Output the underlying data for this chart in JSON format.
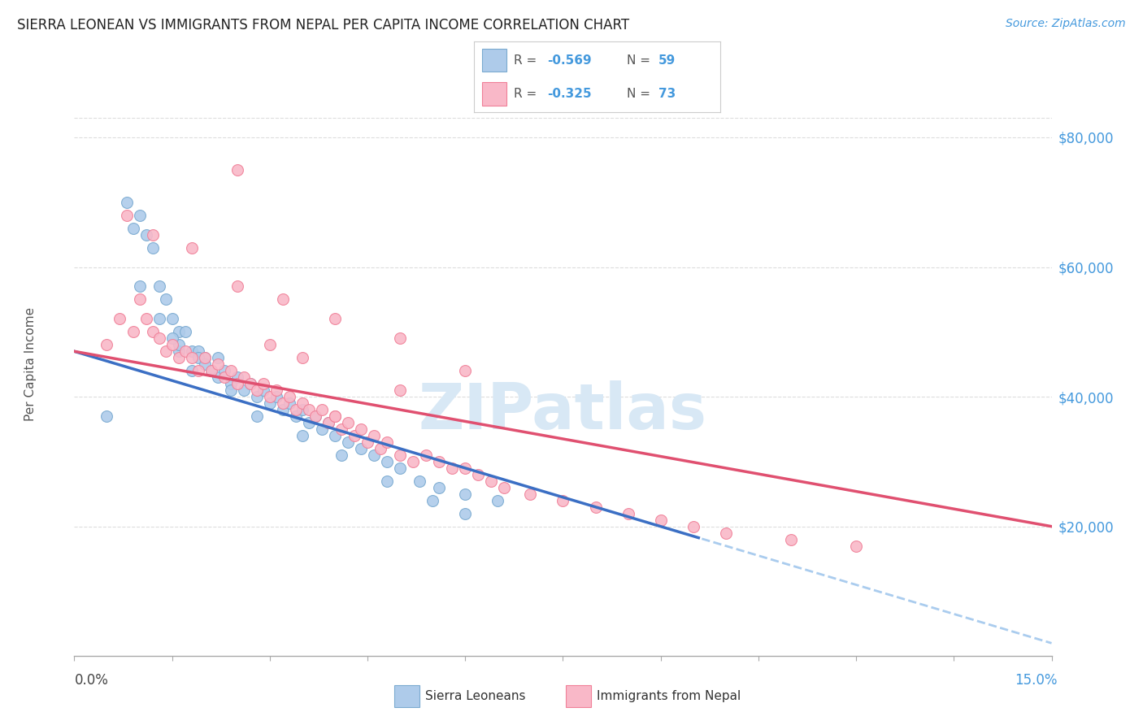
{
  "title": "SIERRA LEONEAN VS IMMIGRANTS FROM NEPAL PER CAPITA INCOME CORRELATION CHART",
  "source": "Source: ZipAtlas.com",
  "ylabel": "Per Capita Income",
  "legend_blue_r": "-0.569",
  "legend_blue_n": "59",
  "legend_pink_r": "-0.325",
  "legend_pink_n": "73",
  "legend_label_blue": "Sierra Leoneans",
  "legend_label_pink": "Immigrants from Nepal",
  "blue_scatter_color": "#AECBEA",
  "blue_edge_color": "#7AAAD0",
  "pink_scatter_color": "#F9B8C8",
  "pink_edge_color": "#F08098",
  "trend_blue_color": "#3B6FC4",
  "trend_pink_color": "#E05070",
  "trend_dash_color": "#AACCEE",
  "grid_color": "#DDDDDD",
  "background_color": "#FFFFFF",
  "watermark_color": "#D8E8F5",
  "xlim": [
    0.0,
    0.15
  ],
  "ylim": [
    0,
    90000
  ],
  "y_ticks": [
    20000,
    40000,
    60000,
    80000
  ],
  "y_tick_labels": [
    "$20,000",
    "$40,000",
    "$60,000",
    "$80,000"
  ],
  "blue_x": [
    0.005,
    0.01,
    0.011,
    0.012,
    0.013,
    0.014,
    0.015,
    0.016,
    0.016,
    0.017,
    0.018,
    0.018,
    0.019,
    0.02,
    0.021,
    0.022,
    0.022,
    0.023,
    0.024,
    0.025,
    0.026,
    0.027,
    0.028,
    0.029,
    0.03,
    0.031,
    0.032,
    0.033,
    0.034,
    0.035,
    0.036,
    0.037,
    0.038,
    0.039,
    0.04,
    0.042,
    0.044,
    0.046,
    0.048,
    0.05,
    0.053,
    0.056,
    0.06,
    0.065,
    0.008,
    0.009,
    0.013,
    0.016,
    0.019,
    0.024,
    0.028,
    0.035,
    0.041,
    0.048,
    0.055,
    0.06,
    0.01,
    0.015,
    0.02
  ],
  "blue_y": [
    37000,
    68000,
    65000,
    63000,
    57000,
    55000,
    52000,
    50000,
    47000,
    50000,
    47000,
    44000,
    47000,
    46000,
    44000,
    46000,
    43000,
    44000,
    42000,
    43000,
    41000,
    42000,
    40000,
    41000,
    39000,
    40000,
    38000,
    39000,
    37000,
    38000,
    36000,
    37000,
    35000,
    36000,
    34000,
    33000,
    32000,
    31000,
    30000,
    29000,
    27000,
    26000,
    25000,
    24000,
    70000,
    66000,
    52000,
    48000,
    46000,
    41000,
    37000,
    34000,
    31000,
    27000,
    24000,
    22000,
    57000,
    49000,
    45000
  ],
  "pink_x": [
    0.005,
    0.007,
    0.009,
    0.01,
    0.011,
    0.012,
    0.013,
    0.014,
    0.015,
    0.016,
    0.017,
    0.018,
    0.019,
    0.02,
    0.021,
    0.022,
    0.023,
    0.024,
    0.025,
    0.026,
    0.027,
    0.028,
    0.029,
    0.03,
    0.031,
    0.032,
    0.033,
    0.034,
    0.035,
    0.036,
    0.037,
    0.038,
    0.039,
    0.04,
    0.041,
    0.042,
    0.043,
    0.044,
    0.045,
    0.046,
    0.047,
    0.048,
    0.05,
    0.052,
    0.054,
    0.056,
    0.058,
    0.06,
    0.062,
    0.064,
    0.066,
    0.07,
    0.075,
    0.08,
    0.085,
    0.09,
    0.095,
    0.1,
    0.11,
    0.12,
    0.008,
    0.012,
    0.018,
    0.025,
    0.032,
    0.04,
    0.05,
    0.06,
    0.035,
    0.05,
    0.025,
    0.03,
    0.04
  ],
  "pink_y": [
    48000,
    52000,
    50000,
    55000,
    52000,
    50000,
    49000,
    47000,
    48000,
    46000,
    47000,
    46000,
    44000,
    46000,
    44000,
    45000,
    43000,
    44000,
    42000,
    43000,
    42000,
    41000,
    42000,
    40000,
    41000,
    39000,
    40000,
    38000,
    39000,
    38000,
    37000,
    38000,
    36000,
    37000,
    35000,
    36000,
    34000,
    35000,
    33000,
    34000,
    32000,
    33000,
    31000,
    30000,
    31000,
    30000,
    29000,
    29000,
    28000,
    27000,
    26000,
    25000,
    24000,
    23000,
    22000,
    21000,
    20000,
    19000,
    18000,
    17000,
    68000,
    65000,
    63000,
    57000,
    55000,
    52000,
    49000,
    44000,
    46000,
    41000,
    75000,
    48000,
    37000
  ]
}
